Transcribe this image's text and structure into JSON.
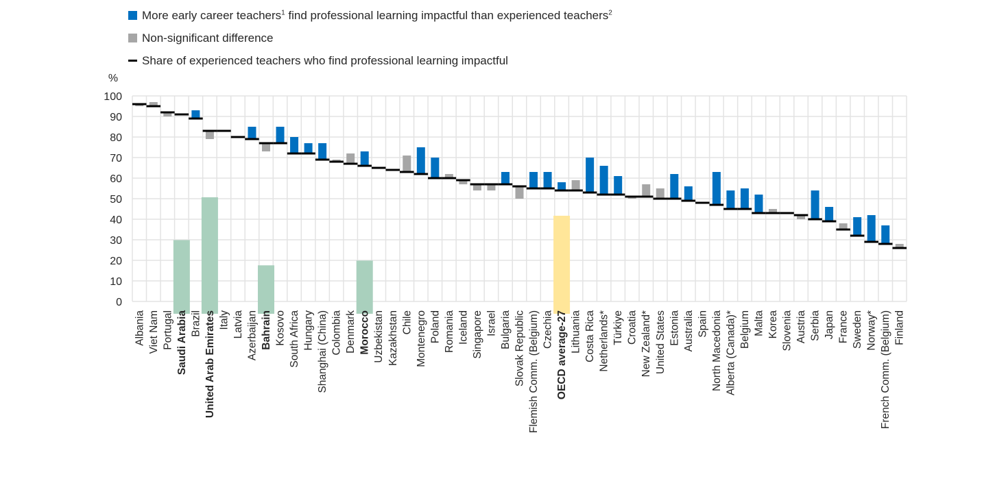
{
  "legend": {
    "significant": {
      "text_a": "More early career teachers",
      "sup_a": "1",
      "text_b": " find professional learning impactful than experienced teachers",
      "sup_b": "2",
      "color": "#0070c0"
    },
    "non_significant": {
      "text": "Non-significant difference",
      "color": "#a6a6a6"
    },
    "experienced": {
      "text": "Share of experienced teachers who find professional learning impactful",
      "color": "#000000"
    }
  },
  "chart_data": {
    "type": "bar",
    "ylabel": "%",
    "ylim": [
      0,
      100
    ],
    "yticks": [
      0,
      10,
      20,
      30,
      40,
      50,
      60,
      70,
      80,
      90,
      100
    ],
    "grid": true,
    "legend_placement": "top-left",
    "highlight_colors": {
      "partner": "#a9d0bd",
      "oecd": "#ffe699"
    },
    "categories": [
      "Albania",
      "Viet Nam",
      "Portugal",
      "Saudi Arabia",
      "Brazil",
      "United Arab Emirates",
      "Italy",
      "Latvia",
      "Azerbaijan",
      "Bahrain",
      "Kosovo",
      "South Africa",
      "Hungary",
      "Shanghai (China)",
      "Colombia",
      "Denmark",
      "Morocco",
      "Uzbekistan",
      "Kazakhstan",
      "Chile",
      "Montenegro",
      "Poland",
      "Romania",
      "Iceland",
      "Singapore",
      "Israel",
      "Bulgaria",
      "Slovak Republic",
      "Flemish Comm. (Belgium)",
      "Czechia",
      "OECD average-27",
      "Lithuania",
      "Costa Rica",
      "Netherlands*",
      "Türkiye",
      "Croatia",
      "New Zealand*",
      "United States",
      "Estonia",
      "Australia",
      "Spain",
      "North Macedonia",
      "Alberta (Canada)*",
      "Belgium",
      "Malta",
      "Korea",
      "Slovenia",
      "Austria",
      "Serbia",
      "Japan",
      "France",
      "Sweden",
      "Norway*",
      "French Comm. (Belgium)",
      "Finland"
    ],
    "highlighted": {
      "Saudi Arabia": "partner",
      "United Arab Emirates": "partner",
      "Bahrain": "partner",
      "Morocco": "partner",
      "OECD average-27": "oecd"
    },
    "experienced": [
      96,
      95,
      92,
      91,
      89,
      83,
      83,
      80,
      79,
      77,
      77,
      72,
      72,
      69,
      68,
      67,
      66,
      65,
      64,
      63,
      62,
      60,
      60,
      59,
      57,
      57,
      57,
      56,
      55,
      55,
      54,
      54,
      53,
      52,
      52,
      51,
      51,
      50,
      50,
      49,
      48,
      47,
      45,
      45,
      43,
      43,
      43,
      42,
      40,
      39,
      35,
      32,
      29,
      28,
      26
    ],
    "early_career": [
      95,
      97,
      90,
      91,
      93,
      79,
      83,
      80,
      85,
      73,
      85,
      80,
      77,
      77,
      69,
      72,
      73,
      65,
      64,
      71,
      75,
      70,
      62,
      57,
      54,
      54,
      63,
      50,
      63,
      63,
      58,
      59,
      70,
      66,
      61,
      50,
      57,
      55,
      62,
      56,
      48,
      63,
      54,
      55,
      52,
      45,
      43,
      40,
      54,
      46,
      38,
      41,
      42,
      37,
      28
    ],
    "significant": [
      false,
      false,
      false,
      false,
      true,
      false,
      false,
      false,
      true,
      false,
      true,
      true,
      true,
      true,
      false,
      false,
      true,
      false,
      false,
      false,
      true,
      true,
      false,
      false,
      false,
      false,
      true,
      false,
      true,
      true,
      true,
      false,
      true,
      true,
      true,
      false,
      false,
      false,
      true,
      true,
      false,
      true,
      true,
      true,
      true,
      false,
      false,
      false,
      true,
      true,
      false,
      true,
      true,
      true,
      false
    ]
  }
}
